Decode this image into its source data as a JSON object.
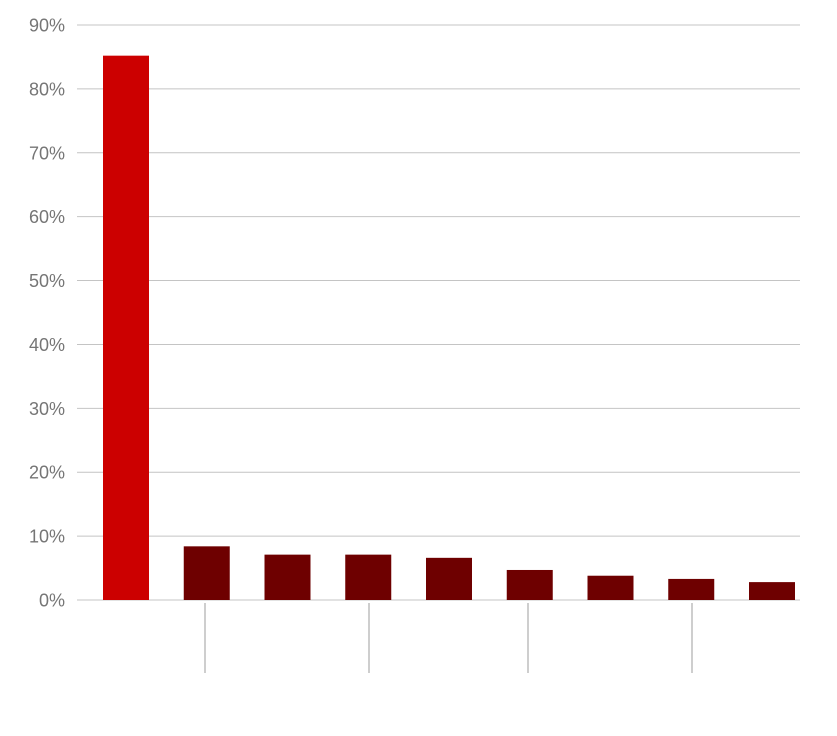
{
  "chart_data": {
    "type": "bar",
    "title": "",
    "xlabel": "",
    "ylabel": "",
    "ylim": [
      0,
      90
    ],
    "yticks": [
      0,
      10,
      20,
      30,
      40,
      50,
      60,
      70,
      80,
      90
    ],
    "ytick_suffix": "%",
    "grid": true,
    "legend": "none",
    "values": [
      85.2,
      8.4,
      7.1,
      7.1,
      6.6,
      4.7,
      3.8,
      3.3,
      2.8
    ],
    "colors": [
      "#cc0000",
      "#6e0000",
      "#6e0000",
      "#6e0000",
      "#6e0000",
      "#6e0000",
      "#6e0000",
      "#6e0000",
      "#6e0000"
    ],
    "group_separators_after": [
      1,
      3,
      5,
      7
    ]
  }
}
